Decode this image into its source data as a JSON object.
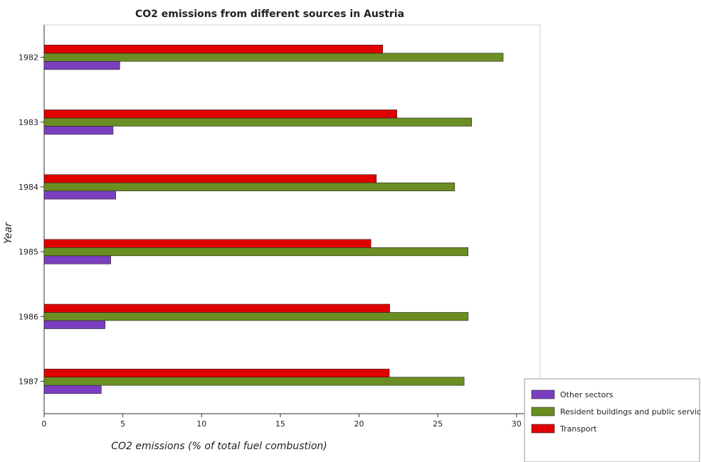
{
  "chart_data": {
    "type": "bar",
    "orientation": "horizontal",
    "title": "CO2 emissions from different sources in Austria",
    "xlabel": "CO2 emissions (% of total fuel combustion)",
    "ylabel": "Year",
    "categories": [
      "1982",
      "1983",
      "1984",
      "1985",
      "1986",
      "1987"
    ],
    "xlim": [
      0,
      31.5
    ],
    "xticks": [
      0,
      5,
      10,
      15,
      20,
      25,
      30
    ],
    "grid": false,
    "legend_position": "bottom-right",
    "series": [
      {
        "name": "Other sectors",
        "color": "#7a3fbf",
        "values": [
          4.8,
          4.38,
          4.55,
          4.23,
          3.87,
          3.63
        ]
      },
      {
        "name": "Resident buildings and public services",
        "color": "#6b8e23",
        "values": [
          29.15,
          27.15,
          26.07,
          26.92,
          26.93,
          26.67
        ]
      },
      {
        "name": "Transport",
        "color": "#e00000",
        "values": [
          21.5,
          22.4,
          21.1,
          20.75,
          21.95,
          21.92
        ]
      }
    ]
  }
}
